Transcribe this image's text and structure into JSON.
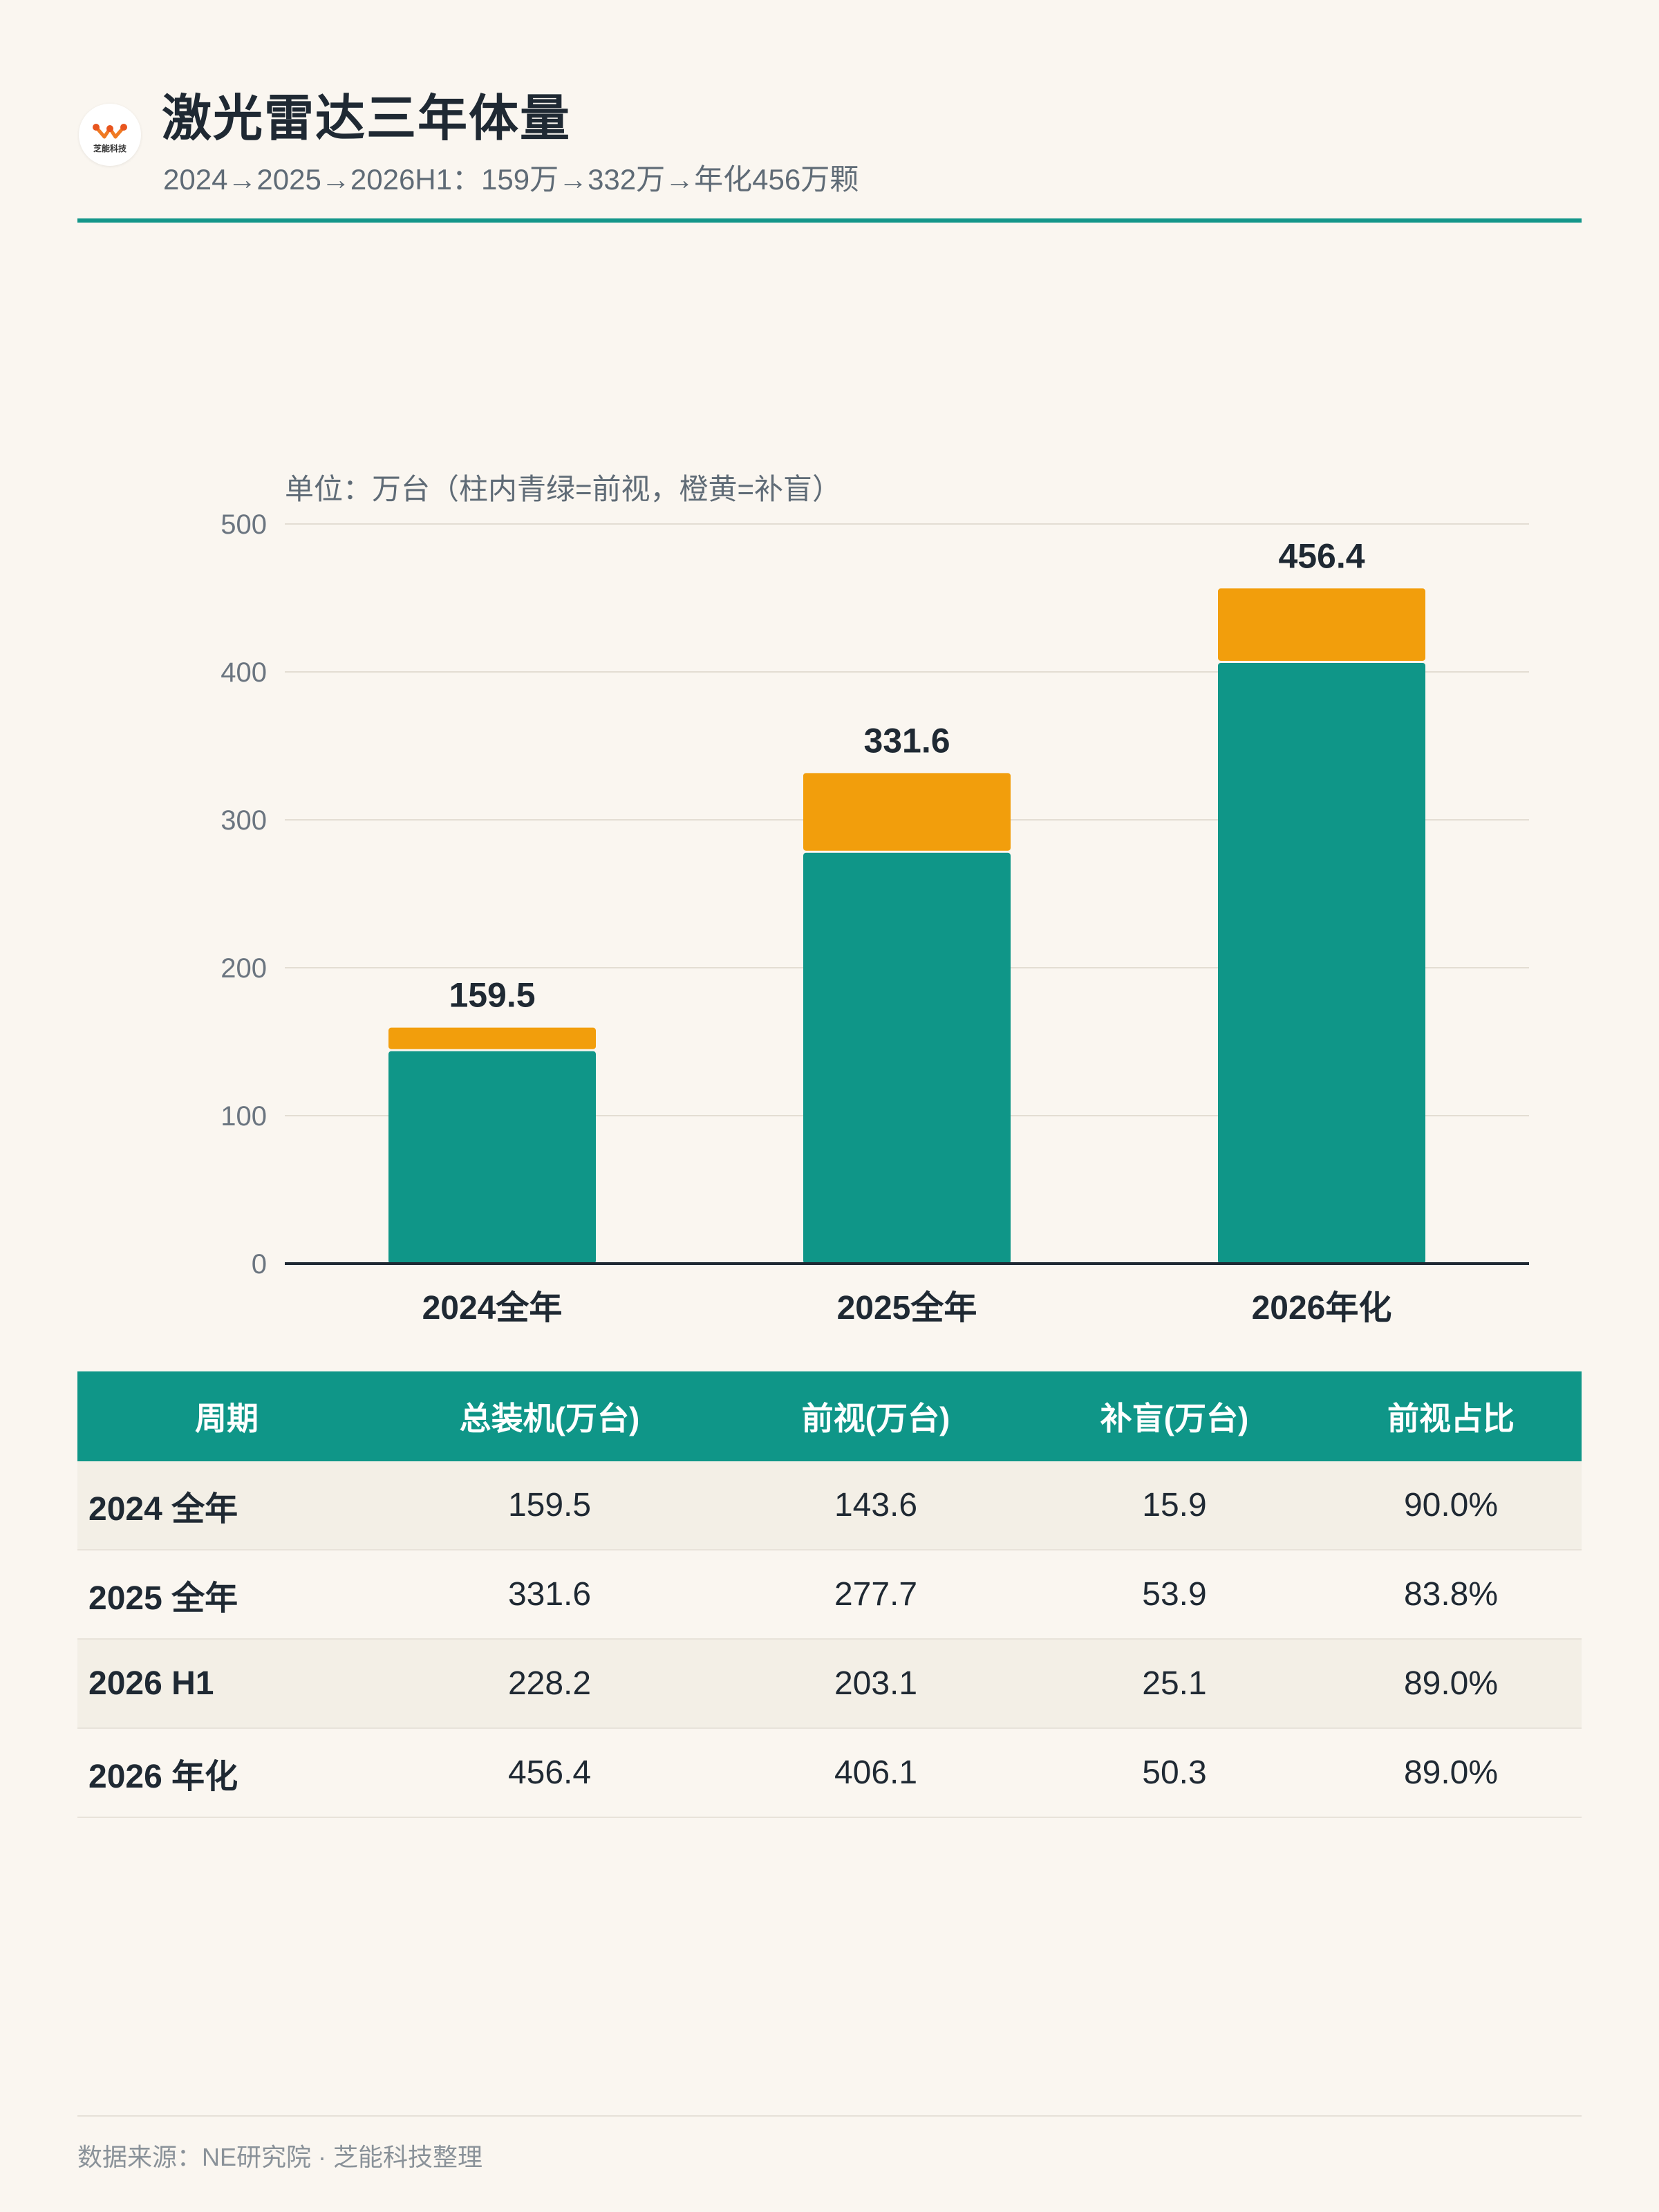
{
  "header": {
    "logo_text": "芝能科技",
    "title": "激光雷达三年体量",
    "subtitle": "2024→2025→2026H1：159万→332万→年化456万颗"
  },
  "chart_note": "单位：万台（柱内青绿=前视，橙黄=补盲）",
  "colors": {
    "front": "#0f9688",
    "blind": "#f29e0c",
    "accent": "#13968a"
  },
  "chart_data": {
    "type": "bar",
    "stacked": true,
    "categories": [
      "2024全年",
      "2025全年",
      "2026年化"
    ],
    "series": [
      {
        "values": [
          143.6,
          277.7,
          406.1
        ],
        "color": "#0f9688"
      },
      {
        "values": [
          15.9,
          53.9,
          50.3
        ],
        "color": "#f29e0c"
      }
    ],
    "totals": [
      "159.5",
      "331.6",
      "456.4"
    ],
    "ylim": [
      0,
      500
    ],
    "yticks": [
      0,
      100,
      200,
      300,
      400,
      500
    ],
    "grid": true
  },
  "table": {
    "headers": [
      "周期",
      "总装机(万台)",
      "前视(万台)",
      "补盲(万台)",
      "前视占比"
    ],
    "rows": [
      [
        "2024 全年",
        "159.5",
        "143.6",
        "15.9",
        "90.0%"
      ],
      [
        "2025 全年",
        "331.6",
        "277.7",
        "53.9",
        "83.8%"
      ],
      [
        "2026 H1",
        "228.2",
        "203.1",
        "25.1",
        "89.0%"
      ],
      [
        "2026 年化",
        "456.4",
        "406.1",
        "50.3",
        "89.0%"
      ]
    ]
  },
  "footer": "数据来源：NE研究院 · 芝能科技整理"
}
